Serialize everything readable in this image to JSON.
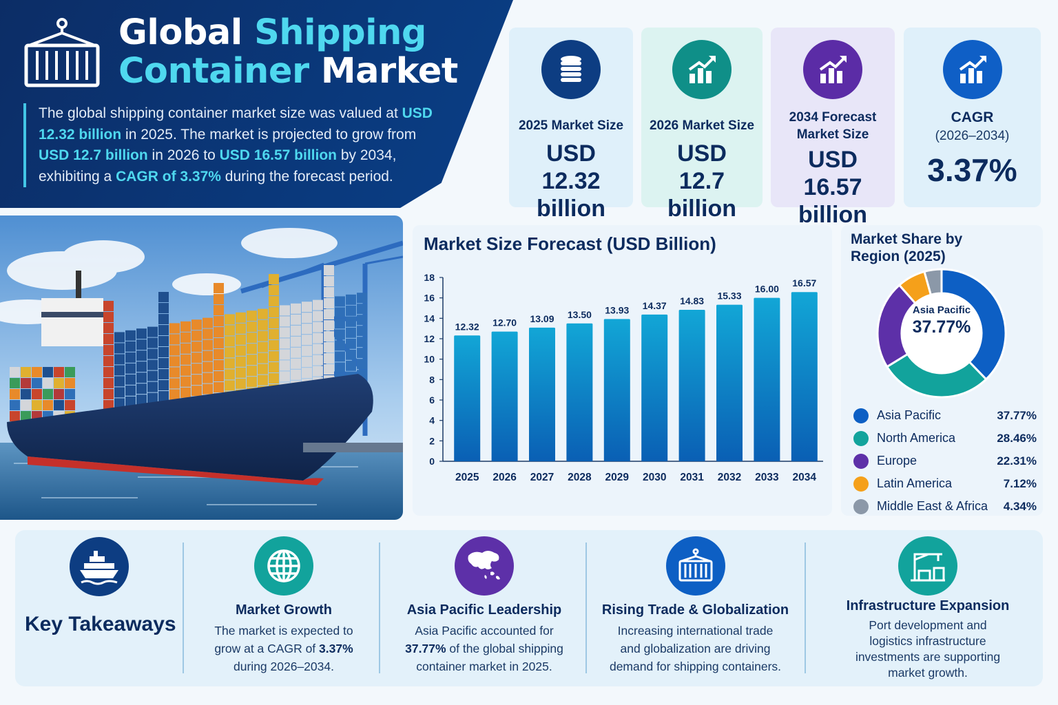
{
  "hero": {
    "title_a": "Global",
    "title_b": "Shipping",
    "title_c": "Container",
    "title_d": "Market",
    "desc": [
      {
        "t": "The global shipping container market size was valued at ",
        "b": false
      },
      {
        "t": "USD 12.32 billion",
        "b": true
      },
      {
        "t": " in 2025. The market is projected to grow from ",
        "b": false
      },
      {
        "t": "USD 12.7 billion",
        "b": true
      },
      {
        "t": " in 2026 to ",
        "b": false
      },
      {
        "t": "USD 16.57 billion",
        "b": true
      },
      {
        "t": " by 2034, exhibiting a ",
        "b": false
      },
      {
        "t": "CAGR of 3.37%",
        "b": true
      },
      {
        "t": " during the forecast period.",
        "b": false
      }
    ]
  },
  "stats": [
    {
      "label": "2025 Market Size",
      "value": "USD 12.32 billion",
      "icon": "coins-icon",
      "bg": "#dff0fa",
      "circle": "#0d3d82"
    },
    {
      "label": "2026 Market Size",
      "value": "USD 12.7 billion",
      "icon": "growth-chart-icon",
      "bg": "#dcf3f1",
      "circle": "#0f8f88"
    },
    {
      "label": "2034 Forecast Market Size",
      "value": "USD 16.57 billion",
      "icon": "growth-chart-icon",
      "bg": "#e8e6f8",
      "circle": "#5b2ca6"
    },
    {
      "label": "CAGR",
      "sub": "(2026–2034)",
      "value": "3.37%",
      "icon": "growth-chart-icon",
      "bg": "#dff0fa",
      "circle": "#0f5fc6"
    }
  ],
  "chart_data": [
    {
      "type": "bar",
      "title": "Market Size Forecast (USD Billion)",
      "categories": [
        "2025",
        "2026",
        "2027",
        "2028",
        "2029",
        "2030",
        "2031",
        "2032",
        "2033",
        "2034"
      ],
      "values": [
        12.32,
        12.7,
        13.09,
        13.5,
        13.93,
        14.37,
        14.83,
        15.33,
        16.0,
        16.57
      ],
      "labels": [
        "12.32",
        "12.70",
        "13.09",
        "13.50",
        "13.93",
        "14.37",
        "14.83",
        "15.33",
        "16.00",
        "16.57"
      ],
      "yticks": [
        "0",
        "2",
        "4",
        "6",
        "8",
        "10",
        "12",
        "14",
        "16",
        "18"
      ],
      "ylim": [
        0,
        18
      ],
      "xlabel": "",
      "ylabel": "",
      "grid": false,
      "bar_color_top": "#12a6d6",
      "bar_color_bottom": "#0a5fb4"
    },
    {
      "type": "pie",
      "title": "Market Share by Region (2025)",
      "center_label": "Asia Pacific",
      "center_value": "37.77%",
      "slices": [
        {
          "name": "Asia Pacific",
          "value": 37.77,
          "label": "37.77%",
          "color": "#0d5fc4"
        },
        {
          "name": "North America",
          "value": 28.46,
          "label": "28.46%",
          "color": "#12a39c"
        },
        {
          "name": "Europe",
          "value": 22.31,
          "label": "22.31%",
          "color": "#5d30a8"
        },
        {
          "name": "Latin America",
          "value": 7.12,
          "label": "7.12%",
          "color": "#f5a01a"
        },
        {
          "name": "Middle East & Africa",
          "value": 4.34,
          "label": "4.34%",
          "color": "#8b98a8"
        }
      ]
    }
  ],
  "takeaways": {
    "title": "Key Takeaways",
    "items": [
      {
        "title": "Market Growth",
        "icon": "globe-icon",
        "color": "#12a39c",
        "text": [
          {
            "t": "The market is expected to grow at a CAGR of ",
            "b": false
          },
          {
            "t": "3.37%",
            "b": true
          },
          {
            "t": " during 2026–2034.",
            "b": false
          }
        ]
      },
      {
        "title": "Asia Pacific Leadership",
        "icon": "asia-map-icon",
        "color": "#5d30a8",
        "text": [
          {
            "t": "Asia Pacific accounted for ",
            "b": false
          },
          {
            "t": "37.77%",
            "b": true
          },
          {
            "t": " of the global shipping container market in 2025.",
            "b": false
          }
        ]
      },
      {
        "title": "Rising Trade & Globalization",
        "icon": "container-icon",
        "color": "#0d5fc4",
        "text": [
          {
            "t": "Increasing international trade and globalization are driving demand for shipping containers.",
            "b": false
          }
        ]
      },
      {
        "title": "Infrastructure Expansion",
        "icon": "port-crane-icon",
        "color": "#12a39c",
        "text": [
          {
            "t": "Port development and logistics infrastructure investments are supporting market growth.",
            "b": false
          }
        ]
      }
    ]
  }
}
